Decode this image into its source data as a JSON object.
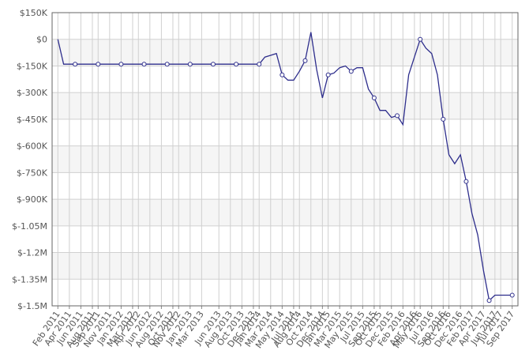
{
  "chart_data": {
    "type": "line",
    "x": [
      "Feb 2011",
      "Mar 2011",
      "Apr 2011",
      "May 2011",
      "Jun 2011",
      "Jul 2011",
      "Aug 2011",
      "Sep 2011",
      "Oct 2011",
      "Nov 2011",
      "Dec 2011",
      "Jan 2012",
      "Feb 2012",
      "Mar 2012",
      "Apr 2012",
      "May 2012",
      "Jun 2012",
      "Jul 2012",
      "Aug 2012",
      "Sep 2012",
      "Oct 2012",
      "Nov 2012",
      "Dec 2012",
      "Jan 2013",
      "Feb 2013",
      "Mar 2013",
      "Apr 2013",
      "May 2013",
      "Jun 2013",
      "Jul 2013",
      "Aug 2013",
      "Sep 2013",
      "Oct 2013",
      "Nov 2013",
      "Dec 2013",
      "Jan 2014",
      "Feb 2014",
      "Mar 2014",
      "Apr 2014",
      "May 2014",
      "Jun 2014",
      "Jul 2014",
      "Aug 2014",
      "Sep 2014",
      "Oct 2014",
      "Nov 2014",
      "Dec 2014",
      "Jan 2015",
      "Feb 2015",
      "Mar 2015",
      "Apr 2015",
      "May 2015",
      "Jun 2015",
      "Jul 2015",
      "Aug 2015",
      "Sep 2015",
      "Oct 2015",
      "Nov 2015",
      "Dec 2015",
      "Jan 2016",
      "Feb 2016",
      "Mar 2016",
      "Apr 2016",
      "May 2016",
      "Jun 2016",
      "Jul 2016",
      "Aug 2016",
      "Sep 2016",
      "Oct 2016",
      "Nov 2016",
      "Dec 2016",
      "Jan 2017",
      "Feb 2017",
      "Mar 2017",
      "Apr 2017",
      "May 2017",
      "Jun 2017",
      "Jul 2017",
      "Aug 2017",
      "Sep 2017"
    ],
    "series": [
      {
        "color": "#2e2e8c",
        "values": [
          0,
          -140000,
          -140000,
          -140000,
          -140000,
          -140000,
          -140000,
          -140000,
          -140000,
          -140000,
          -140000,
          -140000,
          -140000,
          -140000,
          -140000,
          -140000,
          -140000,
          -140000,
          -140000,
          -140000,
          -140000,
          -140000,
          -140000,
          -140000,
          -140000,
          -140000,
          -140000,
          -140000,
          -140000,
          -140000,
          -140000,
          -140000,
          -140000,
          -140000,
          -140000,
          -140000,
          -100000,
          -90000,
          -80000,
          -200000,
          -230000,
          -230000,
          -180000,
          -120000,
          40000,
          -170000,
          -330000,
          -200000,
          -190000,
          -160000,
          -150000,
          -180000,
          -160000,
          -160000,
          -280000,
          -330000,
          -400000,
          -400000,
          -440000,
          -430000,
          -480000,
          -200000,
          -100000,
          0,
          -50000,
          -80000,
          -200000,
          -450000,
          -650000,
          -700000,
          -650000,
          -800000,
          -980000,
          -1100000,
          -1300000,
          -1470000,
          -1440000,
          -1440000,
          -1440000,
          -1440000
        ]
      }
    ],
    "xlim": [
      "Jan 2011",
      "Oct 2017"
    ],
    "xticks": [
      "Feb 2011",
      "Apr 2011",
      "Jun 2011",
      "Aug 2011",
      "Sep 2011",
      "Nov 2011",
      "Jan 2012",
      "Mar 2012",
      "Apr 2012",
      "Jun 2012",
      "Aug 2012",
      "Oct 2012",
      "Nov 2012",
      "Jan 2013",
      "Mar 2013",
      "Jun 2013",
      "Aug 2013",
      "Oct 2013",
      "Dec 2013",
      "Jan 2014",
      "Mar 2014",
      "May 2014",
      "Jul 2014",
      "Aug 2014",
      "Oct 2014",
      "Dec 2014",
      "Jan 2015",
      "Mar 2015",
      "May 2015",
      "Jul 2015",
      "Sep 2015",
      "Oct 2015",
      "Dec 2015",
      "Feb 2016",
      "Apr 2016",
      "May 2016",
      "Jul 2016",
      "Sep 2016",
      "Oct 2016",
      "Dec 2016",
      "Feb 2017",
      "Apr 2017",
      "Jun 2017",
      "Jul 2017",
      "Sep 2017"
    ],
    "ylim": [
      -1500000,
      150000
    ],
    "yticks": [
      {
        "value": 150000,
        "label": "$150K"
      },
      {
        "value": 0,
        "label": "$0"
      },
      {
        "value": -150000,
        "label": "$-150K"
      },
      {
        "value": -300000,
        "label": "$-300K"
      },
      {
        "value": -450000,
        "label": "$-450K"
      },
      {
        "value": -600000,
        "label": "$-600K"
      },
      {
        "value": -750000,
        "label": "$-750K"
      },
      {
        "value": -900000,
        "label": "$-900K"
      },
      {
        "value": -1050000,
        "label": "$-1.05M"
      },
      {
        "value": -1200000,
        "label": "$-1.2M"
      },
      {
        "value": -1350000,
        "label": "$-1.35M"
      },
      {
        "value": -1500000,
        "label": "$-1.5M"
      }
    ],
    "grid": true
  }
}
